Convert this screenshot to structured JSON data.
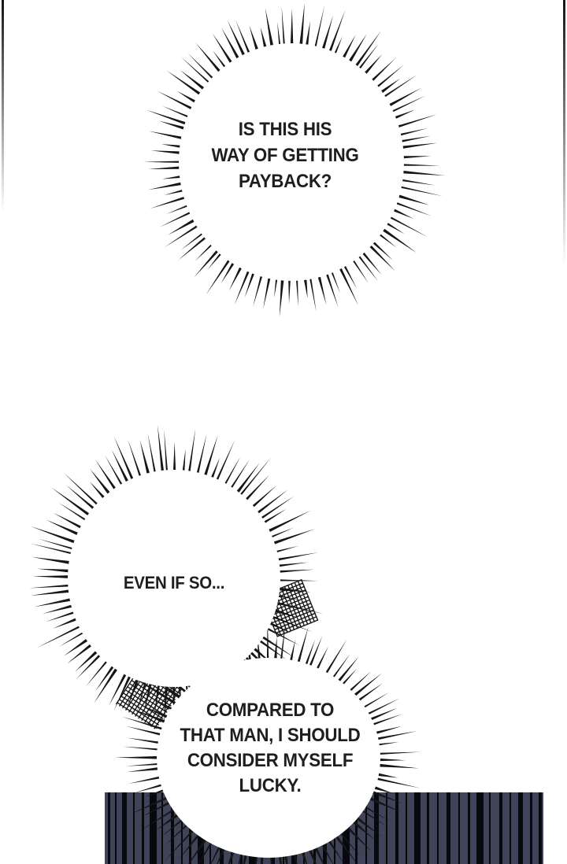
{
  "page": {
    "kind": "comic-page",
    "background": "#ffffff"
  },
  "colors": {
    "ink": "#1e1e1e",
    "spike": "#161616",
    "panel_base": "#404459",
    "panel_stripe": "#07090f",
    "bubble_fill": "#ffffff"
  },
  "bubbles": [
    {
      "name": "thought-burst-top",
      "lines": [
        "IS THIS HIS",
        "WAY OF GETTING",
        "PAYBACK?"
      ]
    },
    {
      "name": "thought-burst-middle",
      "lines": [
        "EVEN IF SO..."
      ]
    },
    {
      "name": "thought-burst-bottom",
      "lines": [
        "COMPARED TO",
        "THAT MAN, I SHOULD",
        "CONSIDER MYSELF",
        "LUCKY."
      ]
    }
  ]
}
